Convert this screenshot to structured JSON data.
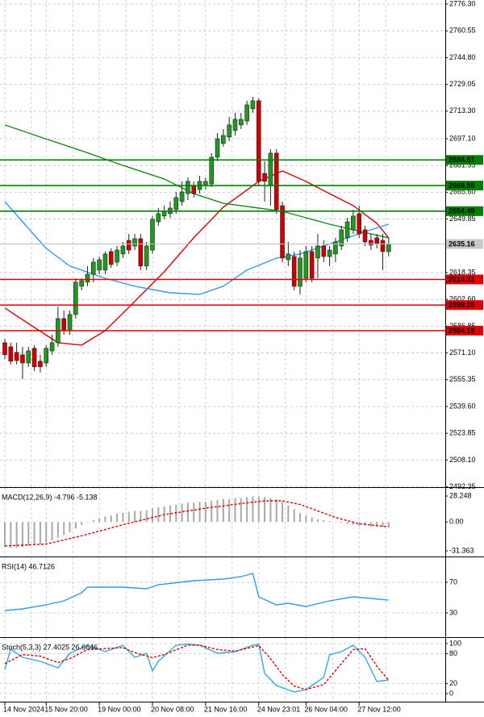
{
  "chart_data": [
    {
      "type": "candlestick",
      "categories": [
        "14 Nov 2024",
        null,
        null,
        null,
        null,
        null,
        null,
        "15 Nov 20:00",
        null,
        null,
        null,
        null,
        null,
        null,
        null,
        null,
        "19 Nov 00:00",
        null,
        null,
        null,
        null,
        null,
        null,
        null,
        null,
        "20 Nov 08:00",
        null,
        null,
        null,
        null,
        null,
        null,
        null,
        null,
        "21 Nov 16:00",
        null,
        null,
        null,
        null,
        null,
        null,
        null,
        null,
        "24 Nov 23:01",
        null,
        null,
        null,
        null,
        null,
        null,
        null,
        "26 Nov 04:00",
        null,
        null,
        null,
        null,
        null,
        null,
        null,
        null,
        "27 Nov 12:00",
        null,
        null,
        null,
        null,
        null
      ],
      "open": [
        2577.1,
        2574.7,
        2571.4,
        2570.0,
        2565.2,
        2573.8,
        2566.2,
        2565.2,
        2572.3,
        2577.1,
        2591.3,
        2584.2,
        2593.7,
        2610.3,
        2612.7,
        2617.4,
        2619.8,
        2619.8,
        2630.7,
        2624.5,
        2629.3,
        2637.3,
        2634.0,
        2638.3,
        2622.2,
        2631.6,
        2648.2,
        2651.6,
        2653.0,
        2655.4,
        2660.1,
        2664.8,
        2669.6,
        2667.2,
        2669.6,
        2670.5,
        2686.2,
        2694.3,
        2698.1,
        2701.9,
        2705.2,
        2707.5,
        2714.7,
        2719.4,
        2676.7,
        2669.6,
        2688.6,
        2657.7,
        2625.9,
        2627.8,
        2610.3,
        2615.0,
        2630.7,
        2626.9,
        2634.0,
        2627.8,
        2629.3,
        2634.0,
        2638.8,
        2643.5,
        2653.0,
        2643.5,
        2637.3,
        2638.8,
        2637.3,
        2630.7
      ],
      "high": [
        2579.5,
        2577.1,
        2577.1,
        2574.7,
        2574.7,
        2575.7,
        2570.0,
        2575.7,
        2581.8,
        2598.4,
        2596.1,
        2596.1,
        2615.0,
        2615.0,
        2622.2,
        2626.9,
        2627.8,
        2630.7,
        2632.6,
        2634.0,
        2636.4,
        2641.1,
        2641.1,
        2641.1,
        2636.4,
        2651.6,
        2656.3,
        2657.7,
        2660.1,
        2665.8,
        2672.0,
        2674.3,
        2672.0,
        2675.3,
        2674.3,
        2688.6,
        2700.4,
        2702.8,
        2709.9,
        2712.3,
        2712.3,
        2719.4,
        2721.8,
        2720.8,
        2683.8,
        2690.9,
        2690.9,
        2660.1,
        2636.4,
        2630.7,
        2631.6,
        2634.0,
        2634.0,
        2641.1,
        2637.3,
        2634.0,
        2638.8,
        2645.9,
        2650.6,
        2655.4,
        2657.7,
        2645.9,
        2641.1,
        2641.1,
        2641.1,
        2638.8
      ],
      "low": [
        2567.6,
        2564.3,
        2564.3,
        2555.7,
        2562.9,
        2560.5,
        2559.5,
        2562.9,
        2570.0,
        2574.7,
        2581.8,
        2581.8,
        2591.3,
        2607.9,
        2610.3,
        2612.7,
        2617.4,
        2617.4,
        2621.2,
        2622.2,
        2626.9,
        2629.3,
        2631.6,
        2619.8,
        2619.8,
        2629.3,
        2645.9,
        2649.7,
        2650.6,
        2653.0,
        2657.7,
        2661.0,
        2662.5,
        2664.8,
        2667.2,
        2668.6,
        2683.8,
        2692.4,
        2695.7,
        2699.0,
        2702.8,
        2705.2,
        2712.3,
        2669.6,
        2660.1,
        2657.7,
        2653.0,
        2624.5,
        2622.2,
        2607.9,
        2605.5,
        2612.7,
        2612.7,
        2615.0,
        2624.5,
        2622.2,
        2624.5,
        2631.6,
        2636.4,
        2641.1,
        2638.8,
        2634.0,
        2631.6,
        2632.6,
        2619.8,
        2627.8
      ],
      "close": [
        2570.0,
        2566.2,
        2566.6,
        2565.2,
        2572.3,
        2562.9,
        2562.9,
        2573.8,
        2577.1,
        2591.3,
        2584.2,
        2593.7,
        2612.7,
        2613.6,
        2617.4,
        2624.5,
        2625.9,
        2629.3,
        2623.1,
        2631.6,
        2634.0,
        2631.6,
        2638.3,
        2622.2,
        2634.0,
        2649.7,
        2653.0,
        2654.4,
        2656.3,
        2662.5,
        2665.8,
        2672.0,
        2664.8,
        2672.0,
        2672.0,
        2686.2,
        2697.1,
        2699.0,
        2705.2,
        2708.5,
        2708.5,
        2717.0,
        2719.4,
        2672.0,
        2672.0,
        2688.6,
        2655.4,
        2626.9,
        2629.3,
        2610.3,
        2626.9,
        2630.7,
        2615.0,
        2634.0,
        2627.8,
        2631.6,
        2636.4,
        2643.5,
        2648.2,
        2651.6,
        2641.1,
        2636.4,
        2634.5,
        2635.4,
        2630.7,
        2635.16
      ],
      "up_color": "#1f9a1f",
      "down_color": "#d00000",
      "series": [
        {
          "color": "#e00000",
          "x": [
            0,
            5,
            9,
            13,
            17,
            21,
            27,
            32,
            37,
            43,
            47,
            51,
            55,
            59,
            63,
            65
          ],
          "values": [
            2597.5,
            2586.1,
            2577.1,
            2575.7,
            2584.2,
            2597.9,
            2618.8,
            2638.8,
            2656.8,
            2672.0,
            2678.1,
            2672.0,
            2664.8,
            2657.7,
            2647.3,
            2638.8
          ]
        },
        {
          "color": "#1a8a1a",
          "x": [
            0,
            6,
            13,
            20,
            27,
            32,
            37,
            43,
            47,
            51,
            55,
            59,
            65
          ],
          "values": [
            2705.2,
            2698.1,
            2690.0,
            2681.4,
            2673.4,
            2664.8,
            2659.1,
            2656.3,
            2654.4,
            2650.6,
            2646.8,
            2643.5,
            2638.8
          ]
        },
        {
          "color": "#3399ee",
          "x": [
            0,
            3,
            7,
            11,
            17,
            22,
            28,
            33,
            37,
            41,
            46,
            50,
            54,
            58,
            62,
            65
          ],
          "values": [
            2660.1,
            2648.2,
            2632.6,
            2622.2,
            2615.0,
            2610.3,
            2606.5,
            2605.5,
            2610.3,
            2619.8,
            2626.9,
            2629.3,
            2634.0,
            2638.8,
            2643.5,
            2646.8
          ]
        }
      ],
      "hlines": [
        {
          "value": 2684.61,
          "color": "#008000"
        },
        {
          "value": 2669.55,
          "color": "#008000"
        },
        {
          "value": 2654.49,
          "color": "#008000"
        },
        {
          "value": 2614.31,
          "color": "#e00000"
        },
        {
          "value": 2599.25,
          "color": "#e00000"
        },
        {
          "value": 2584.19,
          "color": "#e00000"
        }
      ],
      "last_price": 2635.16,
      "ylim": [
        2492.35,
        2776.3
      ],
      "yticks": [
        {
          "value": 2776.3,
          "label": "2776.30"
        },
        2760.55,
        {
          "value": 2744.8,
          "label": "2744.80"
        },
        2729.05,
        {
          "value": 2713.3,
          "label": "2713.30"
        },
        {
          "value": 2697.1,
          "label": "2697.10"
        },
        2681.35,
        {
          "value": 2665.6,
          "label": "2665.60"
        },
        2649.85,
        2618.35,
        {
          "value": 2602.6,
          "label": "2602.60"
        },
        2586.85,
        {
          "value": 2571.1,
          "label": "2571.10"
        },
        2555.35,
        {
          "value": 2539.6,
          "label": "2539.60"
        },
        2523.85,
        {
          "value": 2508.1,
          "label": "2508.10"
        },
        2492.35
      ],
      "grid": true
    },
    {
      "type": "macd",
      "title": "MACD(12,26,9) -4.796 -5.138",
      "ylim": [
        -31.363,
        28.248
      ],
      "yticks": [
        28.248,
        {
          "value": 0,
          "label": "0.00"
        },
        -31.363
      ],
      "histogram": {
        "color": "#a8a8a8",
        "values": [
          -27,
          -28,
          -28,
          -27,
          -26,
          -25,
          -24,
          -22,
          -20,
          -17,
          -14,
          -11,
          -7,
          -3,
          0,
          2,
          4,
          6,
          7,
          9,
          10,
          11,
          12,
          12,
          13,
          15,
          16,
          17,
          18,
          19,
          20,
          21,
          21,
          22,
          22,
          23,
          24,
          25,
          25,
          26,
          26,
          27,
          28,
          28,
          27,
          26,
          25,
          22,
          18,
          14,
          10,
          7,
          5,
          3,
          2,
          1,
          0,
          -1,
          -2,
          -3,
          -4,
          -4,
          -5,
          -5,
          -5,
          -4.796
        ]
      },
      "series": [
        {
          "color": "#e00000",
          "dashed": true,
          "x": [
            0,
            7,
            13,
            20,
            27,
            34,
            40,
            44,
            47,
            50,
            53,
            56,
            60,
            65
          ],
          "values": [
            -26,
            -24,
            -15,
            -3,
            8,
            15,
            20,
            23,
            23,
            19,
            12,
            5,
            -2,
            -5.138
          ]
        }
      ]
    },
    {
      "type": "line",
      "title": "RSI(14) 46.7126",
      "ylim": [
        0,
        100
      ],
      "yticks": [
        70,
        30
      ],
      "grid": true,
      "series": [
        {
          "color": "#3399ee",
          "x": [
            0,
            3,
            7,
            10,
            13,
            14,
            20,
            24,
            26,
            32,
            37,
            40,
            42,
            43,
            46,
            48,
            51,
            55,
            59,
            62,
            65
          ],
          "values": [
            33.2,
            35.3,
            40.5,
            45.8,
            56.3,
            63.7,
            63.7,
            61.6,
            66.8,
            72.1,
            74.2,
            77.4,
            81.6,
            51.1,
            40.5,
            42.6,
            38.4,
            45.8,
            51.1,
            48.9,
            46.7126
          ]
        }
      ]
    },
    {
      "type": "line",
      "title": "Stoch(5,3,3) 27.4025 26.6646",
      "ylim": [
        0,
        100
      ],
      "yticks": [
        100,
        80,
        20,
        0
      ],
      "grid": true,
      "series": [
        {
          "color": "#33aadd",
          "x": [
            0,
            1,
            3,
            6,
            9,
            11,
            14,
            17,
            20,
            22,
            24,
            25,
            26,
            29,
            31,
            33,
            36,
            39,
            42,
            43,
            44,
            46,
            49,
            51,
            54,
            55,
            57,
            59,
            61,
            63,
            65
          ],
          "values": [
            48.4,
            88.7,
            72.6,
            64.5,
            51.6,
            80.6,
            96.8,
            83.9,
            96.8,
            72.6,
            80.6,
            45.2,
            64.5,
            96.8,
            99,
            96.8,
            80.6,
            83.9,
            96.8,
            99,
            40.3,
            16.1,
            3.2,
            8.1,
            32.3,
            77.4,
            83.9,
            96.8,
            72.6,
            24.2,
            27.4025
          ]
        },
        {
          "color": "#e00000",
          "dashed": true,
          "x": [
            0,
            3,
            6,
            9,
            11,
            14,
            17,
            20,
            22,
            25,
            27,
            31,
            33,
            36,
            39,
            43,
            45,
            47,
            49,
            51,
            54,
            57,
            59,
            61,
            63,
            65
          ],
          "values": [
            60,
            78,
            75,
            62,
            70,
            88,
            90,
            92,
            82,
            72,
            78,
            97,
            97,
            88,
            85,
            96,
            70,
            38,
            15,
            8,
            18,
            60,
            88,
            90,
            55,
            26.6646
          ]
        }
      ]
    }
  ]
}
